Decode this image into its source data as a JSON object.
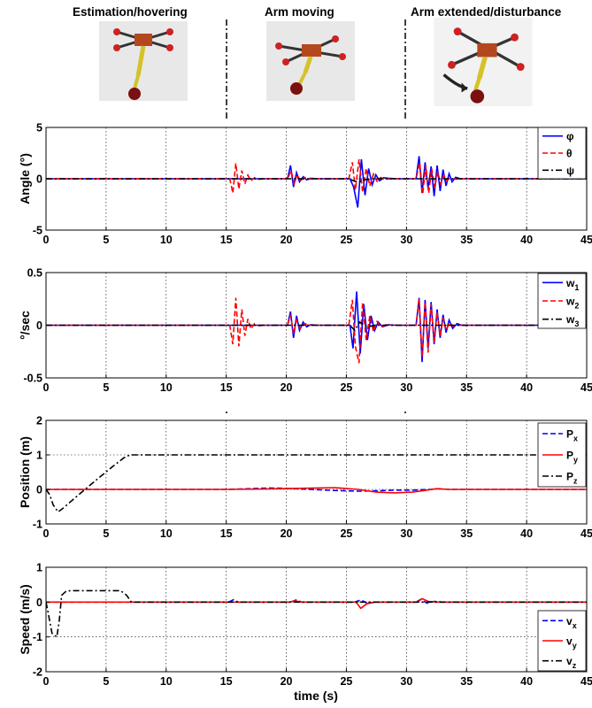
{
  "phases": [
    {
      "label": "Estimation/hovering"
    },
    {
      "label": "Arm moving"
    },
    {
      "label": "Arm extended/disturbance"
    }
  ],
  "xlabel": "time (s)",
  "colors": {
    "blue": "#0000ff",
    "red": "#ff0000",
    "black": "#000000"
  },
  "chart_data": [
    {
      "type": "line",
      "ylabel": "Angle (°)",
      "xlim": [
        0,
        45
      ],
      "ylim": [
        -5,
        5
      ],
      "x_ticks": [
        0,
        5,
        10,
        15,
        20,
        25,
        30,
        35,
        40,
        45
      ],
      "y_ticks": [
        -5,
        0,
        5
      ],
      "grid": true,
      "legend_position": "top-right",
      "series": [
        {
          "name": "φ",
          "color": "#0000ff",
          "style": "solid",
          "x": [
            0,
            20.1,
            20.35,
            20.6,
            20.85,
            21.1,
            21.4,
            21.7,
            22.0,
            22.6,
            25.3,
            25.6,
            25.95,
            26.25,
            26.55,
            26.85,
            27.15,
            27.45,
            27.75,
            28.1,
            28.5,
            29.2,
            30.8,
            31.05,
            31.3,
            31.55,
            31.8,
            32.05,
            32.3,
            32.55,
            32.8,
            33.05,
            33.3,
            33.55,
            33.8,
            34.1,
            34.5,
            45
          ],
          "y": [
            0,
            0,
            1.3,
            -0.8,
            0.6,
            -0.3,
            0.2,
            -0.1,
            0.05,
            0,
            0,
            -0.8,
            -2.8,
            1.9,
            -1.6,
            1.0,
            -0.6,
            0.4,
            -0.2,
            0.1,
            0.05,
            0,
            0,
            2.2,
            -1.4,
            1.6,
            -1.0,
            1.2,
            -1.7,
            1.3,
            -1.2,
            0.9,
            -0.7,
            0.5,
            -0.3,
            0.15,
            0,
            0
          ]
        },
        {
          "name": "θ",
          "color": "#ff0000",
          "style": "dashed",
          "x": [
            0,
            15.3,
            15.55,
            15.8,
            16.05,
            16.3,
            16.55,
            16.8,
            17.05,
            17.35,
            17.7,
            18.2,
            20.1,
            20.4,
            20.65,
            20.9,
            21.2,
            21.5,
            21.8,
            22.3,
            25.2,
            25.5,
            25.75,
            26.05,
            26.35,
            26.65,
            26.95,
            27.25,
            27.55,
            27.85,
            28.2,
            28.8,
            30.8,
            31.1,
            31.35,
            31.6,
            31.85,
            32.1,
            32.35,
            32.6,
            32.85,
            33.1,
            33.35,
            33.6,
            33.9,
            34.3,
            45
          ],
          "y": [
            0,
            0,
            -1.4,
            1.5,
            -1.0,
            0.8,
            -0.5,
            0.35,
            -0.2,
            0.1,
            -0.05,
            0,
            0,
            0.8,
            -0.5,
            0.4,
            -0.25,
            0.15,
            -0.05,
            0,
            0,
            1.6,
            -1.1,
            1.9,
            -1.3,
            1.0,
            -0.7,
            0.45,
            -0.25,
            0.12,
            -0.05,
            0,
            0,
            1.6,
            -1.5,
            1.3,
            -1.4,
            1.0,
            -0.9,
            0.7,
            -0.5,
            0.35,
            -0.2,
            0.1,
            -0.05,
            0,
            0
          ]
        },
        {
          "name": "ψ",
          "color": "#000000",
          "style": "dashdot",
          "x": [
            0,
            25.2,
            25.6,
            26.0,
            26.5,
            27.2,
            45
          ],
          "y": [
            0,
            0,
            -0.2,
            -0.35,
            -0.1,
            0,
            0
          ]
        }
      ]
    },
    {
      "type": "line",
      "ylabel": "°/sec",
      "xlim": [
        0,
        45
      ],
      "ylim": [
        -0.5,
        0.5
      ],
      "x_ticks": [
        0,
        5,
        10,
        15,
        20,
        25,
        30,
        35,
        40,
        45
      ],
      "y_ticks": [
        -0.5,
        0,
        0.5
      ],
      "grid": true,
      "legend_position": "top-right",
      "series": [
        {
          "name": "w1",
          "color": "#0000ff",
          "style": "solid",
          "x": [
            0,
            20.1,
            20.35,
            20.6,
            20.85,
            21.1,
            21.4,
            21.7,
            22.0,
            22.6,
            25.3,
            25.55,
            25.85,
            26.15,
            26.45,
            26.75,
            27.05,
            27.35,
            27.65,
            28.0,
            28.5,
            29.2,
            30.8,
            31.05,
            31.3,
            31.55,
            31.8,
            32.05,
            32.3,
            32.55,
            32.8,
            33.05,
            33.3,
            33.55,
            33.85,
            34.2,
            34.6,
            45
          ],
          "y": [
            0,
            0,
            0.13,
            -0.12,
            0.09,
            -0.05,
            0.03,
            -0.015,
            0.005,
            0,
            0,
            -0.22,
            0.32,
            -0.27,
            0.2,
            -0.14,
            0.09,
            -0.05,
            0.03,
            -0.015,
            0.005,
            0,
            0,
            0.26,
            -0.35,
            0.24,
            -0.22,
            0.22,
            -0.18,
            0.15,
            -0.12,
            0.1,
            -0.07,
            0.05,
            -0.03,
            0.015,
            0,
            0
          ]
        },
        {
          "name": "w2",
          "color": "#ff0000",
          "style": "dashed",
          "x": [
            0,
            15.3,
            15.55,
            15.8,
            16.05,
            16.3,
            16.55,
            16.8,
            17.05,
            17.35,
            17.7,
            18.2,
            20.1,
            20.35,
            20.6,
            20.85,
            21.15,
            21.5,
            22.0,
            25.2,
            25.5,
            25.75,
            26.05,
            26.35,
            26.65,
            26.95,
            27.25,
            27.55,
            27.9,
            28.3,
            28.8,
            30.8,
            31.05,
            31.3,
            31.55,
            31.8,
            32.05,
            32.3,
            32.55,
            32.8,
            33.05,
            33.3,
            33.6,
            33.9,
            34.3,
            45
          ],
          "y": [
            0,
            0,
            -0.18,
            0.26,
            -0.2,
            0.15,
            -0.1,
            0.06,
            -0.035,
            0.015,
            -0.005,
            0,
            0,
            0.1,
            -0.08,
            0.05,
            -0.03,
            0.015,
            0,
            0,
            0.24,
            -0.2,
            -0.36,
            0.22,
            -0.14,
            0.09,
            -0.06,
            0.035,
            -0.015,
            0.005,
            0,
            0,
            0.25,
            -0.3,
            0.22,
            -0.26,
            0.2,
            -0.16,
            0.13,
            -0.1,
            0.07,
            -0.045,
            0.025,
            -0.01,
            0,
            0
          ]
        },
        {
          "name": "w3",
          "color": "#000000",
          "style": "dashdot",
          "x": [
            0,
            25.3,
            25.7,
            26.1,
            26.7,
            27.4,
            45
          ],
          "y": [
            0,
            0,
            -0.05,
            0.03,
            -0.015,
            0,
            0
          ]
        }
      ]
    },
    {
      "type": "line",
      "ylabel": "Position (m)",
      "xlim": [
        0,
        45
      ],
      "ylim": [
        -1,
        2
      ],
      "x_ticks": [
        0,
        5,
        10,
        15,
        20,
        25,
        30,
        35,
        40,
        45
      ],
      "y_ticks": [
        -1,
        0,
        1,
        2
      ],
      "grid": true,
      "legend_position": "bottom-right",
      "series": [
        {
          "name": "Px",
          "color": "#0000ff",
          "style": "dashed",
          "x": [
            0,
            15,
            17,
            18.5,
            20,
            22,
            24,
            26,
            27.5,
            29,
            30.5,
            32,
            32.7,
            33.5,
            35,
            45
          ],
          "y": [
            0,
            0,
            0.02,
            0.04,
            0.03,
            0.0,
            -0.03,
            -0.05,
            -0.04,
            -0.02,
            -0.02,
            0.0,
            0.02,
            0.0,
            0,
            0
          ]
        },
        {
          "name": "Py",
          "color": "#ff0000",
          "style": "solid",
          "x": [
            0,
            15,
            18,
            21,
            24,
            26,
            27.5,
            29,
            30.5,
            31.5,
            32.5,
            33.5,
            35,
            45
          ],
          "y": [
            0,
            0,
            0.01,
            0.03,
            0.05,
            0.0,
            -0.08,
            -0.1,
            -0.08,
            -0.03,
            0.02,
            0.0,
            0,
            0
          ]
        },
        {
          "name": "Pz",
          "color": "#000000",
          "style": "dashdot",
          "x": [
            0,
            0.3,
            0.6,
            1.0,
            1.4,
            2.5,
            4.0,
            5.5,
            6.5,
            7.0,
            45
          ],
          "y": [
            0,
            -0.15,
            -0.45,
            -0.65,
            -0.55,
            -0.22,
            0.22,
            0.65,
            0.92,
            1.0,
            1.0
          ]
        }
      ]
    },
    {
      "type": "line",
      "ylabel": "Speed (m/s)",
      "xlabel": "time (s)",
      "xlim": [
        0,
        45
      ],
      "ylim": [
        -2,
        1
      ],
      "x_ticks": [
        0,
        5,
        10,
        15,
        20,
        25,
        30,
        35,
        40,
        45
      ],
      "y_ticks": [
        -2,
        -1,
        0,
        1
      ],
      "grid": true,
      "legend_position": "bottom-right",
      "series": [
        {
          "name": "vx",
          "color": "#0000ff",
          "style": "dashed",
          "x": [
            0,
            15.2,
            15.6,
            16.0,
            20.4,
            20.8,
            21.3,
            25.7,
            26.2,
            26.8,
            27.4,
            30.8,
            31.2,
            31.7,
            32.3,
            33.0,
            45
          ],
          "y": [
            0,
            0,
            0.07,
            0,
            0,
            0.06,
            0,
            0,
            0.06,
            -0.04,
            0,
            0,
            0.08,
            -0.03,
            0.02,
            0,
            0
          ]
        },
        {
          "name": "vy",
          "color": "#ff0000",
          "style": "solid",
          "x": [
            0,
            20.3,
            20.7,
            21.2,
            25.8,
            26.2,
            26.7,
            27.3,
            30.9,
            31.3,
            31.8,
            32.5,
            45
          ],
          "y": [
            0,
            0,
            0.04,
            0,
            0,
            -0.18,
            -0.05,
            0,
            0,
            0.1,
            0.02,
            0,
            0
          ]
        },
        {
          "name": "vz",
          "color": "#000000",
          "style": "dashdot",
          "x": [
            0,
            0.15,
            0.5,
            0.9,
            1.1,
            1.3,
            1.7,
            2.3,
            6.2,
            6.7,
            7.1,
            45
          ],
          "y": [
            0,
            -0.25,
            -0.9,
            -1.0,
            -0.55,
            0.2,
            0.32,
            0.33,
            0.33,
            0.2,
            0.0,
            0.0
          ]
        }
      ]
    }
  ]
}
